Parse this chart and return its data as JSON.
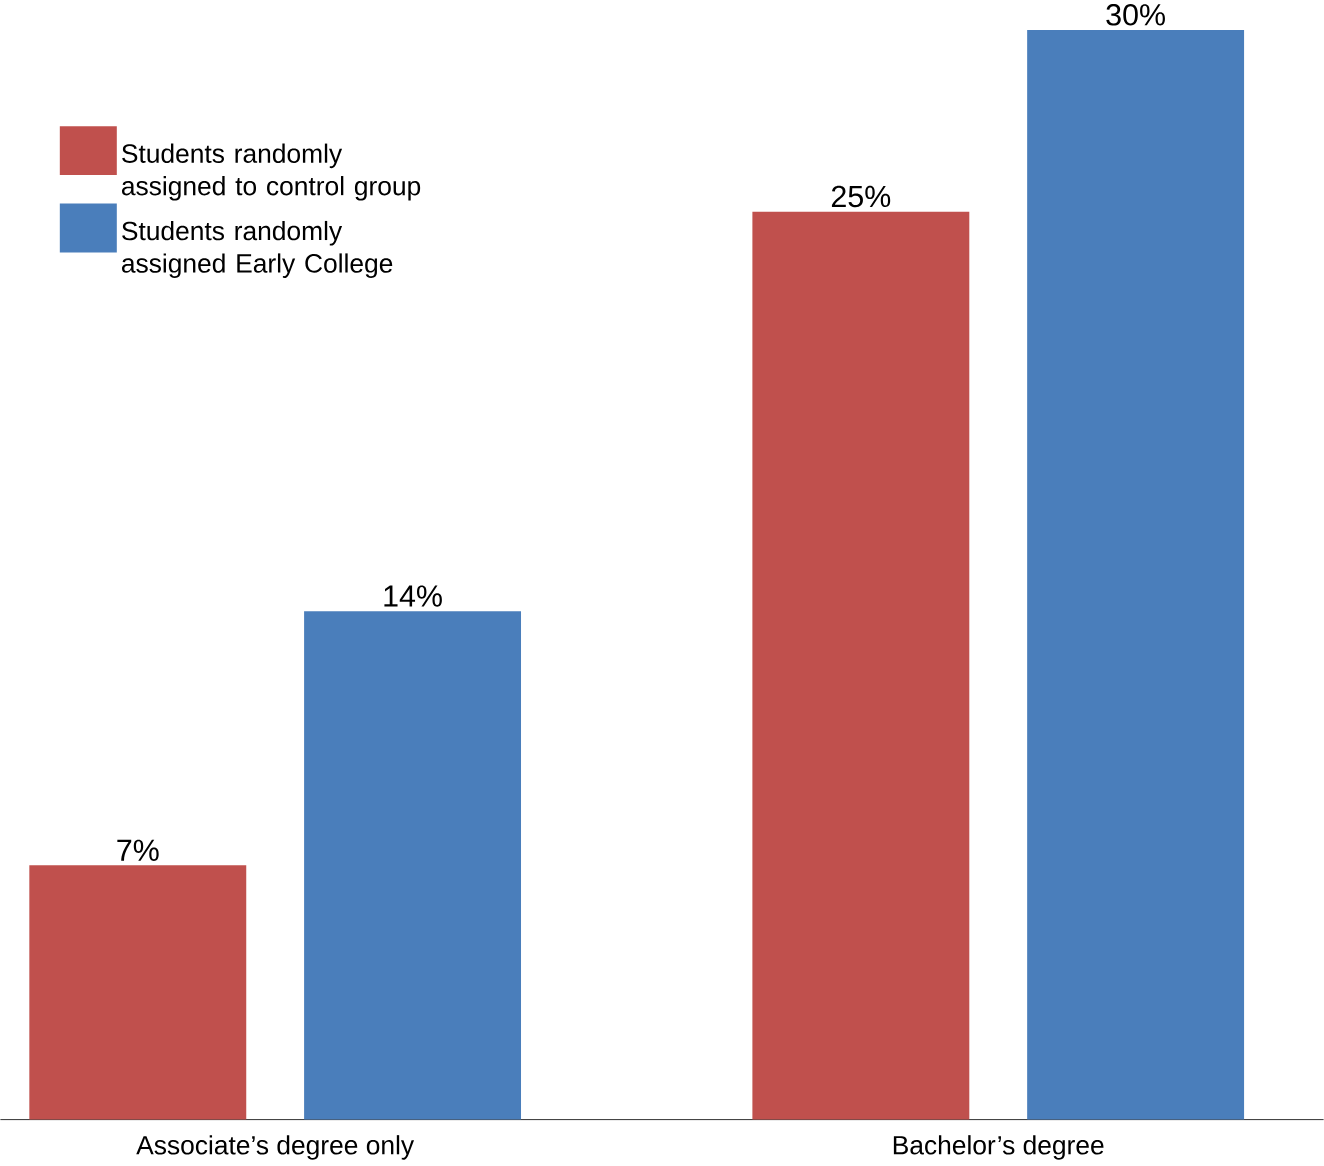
{
  "chart_data": {
    "type": "bar",
    "categories": [
      "Associate’s degree only",
      "Bachelor’s degree"
    ],
    "series": [
      {
        "name": "Students randomly assigned to control group",
        "color": "#c0504d",
        "values": [
          7,
          25
        ],
        "value_labels": [
          "7%",
          "25%"
        ]
      },
      {
        "name": "Students randomly assigned Early College",
        "color": "#4a7ebb",
        "values": [
          14,
          30
        ],
        "value_labels": [
          "14%",
          "30%"
        ]
      }
    ],
    "legend": "top left"
  }
}
